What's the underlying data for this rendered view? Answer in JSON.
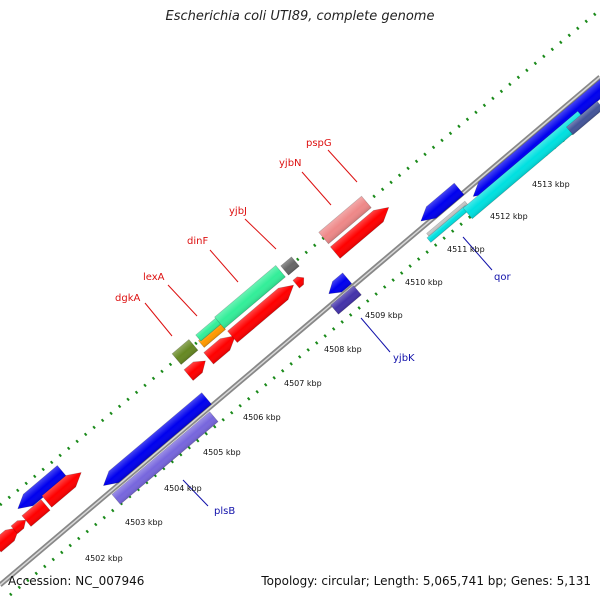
{
  "title": "Escherichia coli UTI89, complete genome",
  "accession": "Accession: NC_007946",
  "summary": "Topology: circular; Length: 5,065,741 bp; Genes: 5,131",
  "colors": {
    "backbone": "#777777",
    "tick_dots": "#1a8a1a",
    "forward_cds": "#ff0000",
    "forward_cds_pale": "#ee8888",
    "reverse_cds": "#0000ee",
    "reverse_cds_pale": "#7766dd",
    "cyan_feature": "#00e0e0",
    "green_feature": "#33ee99",
    "olive_feature": "#668822",
    "orange_feature": "#ff9900",
    "grey_feature": "#666666",
    "forward_label": "#dd1111",
    "reverse_label": "#1111aa"
  },
  "ticks": [
    "4502 kbp",
    "4503 kbp",
    "4504 kbp",
    "4505 kbp",
    "4506 kbp",
    "4507 kbp",
    "4508 kbp",
    "4509 kbp",
    "4510 kbp",
    "4511 kbp",
    "4512 kbp",
    "4513 kbp"
  ],
  "forward_genes": [
    "dgkA",
    "lexA",
    "dinF",
    "yjbJ",
    "yjbN",
    "pspG"
  ],
  "reverse_genes": [
    "plsB",
    "yjbK",
    "qor"
  ]
}
